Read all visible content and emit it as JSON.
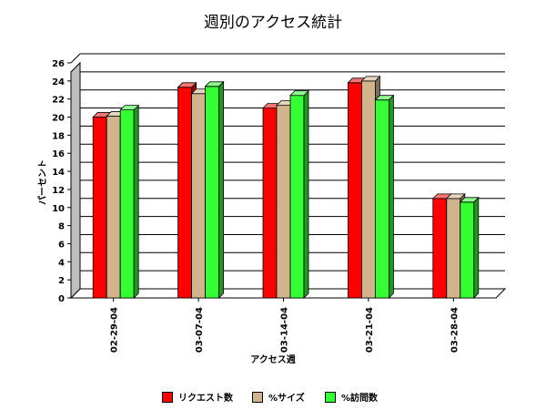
{
  "chart_data": {
    "type": "bar",
    "title": "週別のアクセス統計",
    "xlabel": "アクセス週",
    "ylabel": "パーセント",
    "ylim": [
      0,
      26
    ],
    "yticks": [
      "0",
      "2",
      "4",
      "6",
      "8",
      "10",
      "12",
      "14",
      "16",
      "18",
      "20",
      "22",
      "24",
      "26"
    ],
    "grid": true,
    "legend_position": "bottom",
    "categories": [
      "02-29-04",
      "03-07-04",
      "03-14-04",
      "03-21-04",
      "03-28-04"
    ],
    "series": [
      {
        "name": "リクエスト数",
        "color": "#ff0000",
        "values": [
          20.0,
          23.3,
          21.0,
          23.8,
          11.0
        ]
      },
      {
        "name": "%サイズ",
        "color": "#d2b48c",
        "values": [
          20.1,
          22.6,
          21.3,
          24.0,
          11.0
        ]
      },
      {
        "name": "%訪問数",
        "color": "#33ff33",
        "values": [
          20.8,
          23.4,
          22.4,
          21.9,
          10.6
        ]
      }
    ]
  }
}
